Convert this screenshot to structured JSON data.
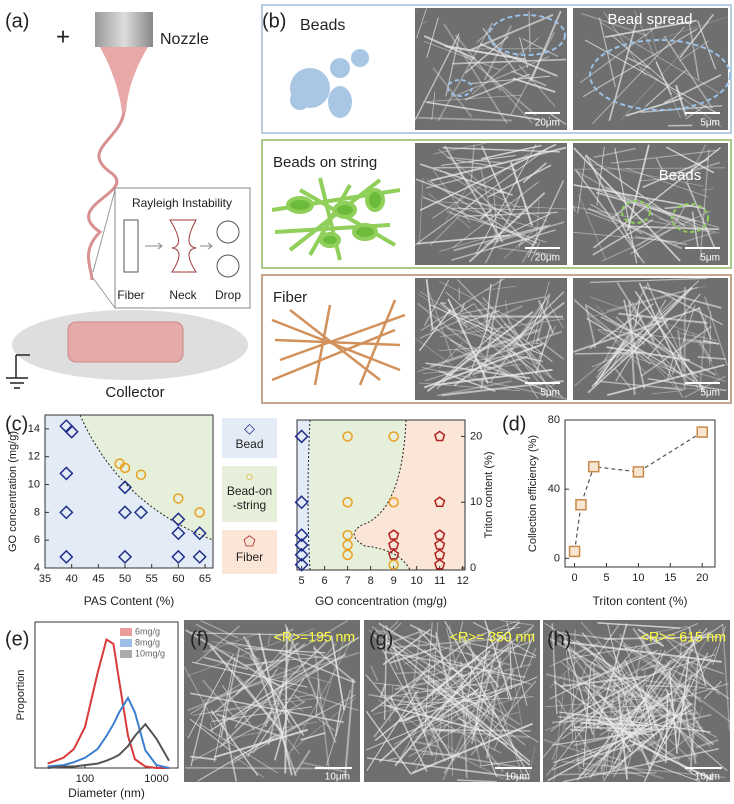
{
  "panel_labels": {
    "a": "(a)",
    "b": "(b)",
    "c": "(c)",
    "d": "(d)",
    "e": "(e)",
    "f": "(f)",
    "g": "(g)",
    "h": "(h)"
  },
  "a": {
    "plus": "+",
    "nozzle": "Nozzle",
    "inset_title": "Rayleigh Instability",
    "stages": [
      "Fiber",
      "Neck",
      "Drop"
    ],
    "collector": "Collector"
  },
  "b": {
    "rows": [
      {
        "label": "Beads",
        "note": "Bead spread",
        "scale_bars": [
          "20μm",
          "5μm"
        ]
      },
      {
        "label": "Beads on string",
        "note": "Beads",
        "scale_bars": [
          "20μm",
          "5μm"
        ]
      },
      {
        "label": "Fiber",
        "scale_bars": [
          "5μm",
          "5μm"
        ]
      }
    ]
  },
  "f_h": [
    {
      "caption": "<R>=195 nm",
      "scale_bar": "10μm"
    },
    {
      "caption": "<R>= 350 nm",
      "scale_bar": "10μm"
    },
    {
      "caption": "<R>= 615 nm",
      "scale_bar": "10μm"
    }
  ],
  "chart_data": [
    {
      "type": "scatter",
      "x_label": "PAS Content (%)",
      "y_label": "GO concentration (mg/g)",
      "xlim": [
        35,
        66.5
      ],
      "xticks": [
        35,
        40,
        45,
        50,
        55,
        60,
        65
      ],
      "ylim": [
        4,
        15
      ],
      "yticks": [
        4,
        6,
        8,
        10,
        12,
        14
      ],
      "series": [
        {
          "color": "#1f2f8a",
          "marker": "diamond",
          "x": [
            39,
            40,
            39,
            39,
            39,
            50,
            50,
            53,
            50,
            60,
            60,
            60,
            64,
            64
          ],
          "values": [
            14.2,
            13.8,
            10.8,
            8,
            4.8,
            9.8,
            8,
            8,
            4.8,
            7.5,
            6.5,
            4.8,
            6.5,
            4.8
          ]
        },
        {
          "color": "#e8a020",
          "marker": "circle",
          "x": [
            49,
            50,
            53,
            60,
            64
          ],
          "values": [
            11.5,
            11.2,
            10.7,
            9,
            8
          ]
        }
      ]
    },
    {
      "type": "scatter",
      "x_label": "GO concentration (mg/g)",
      "y_label": "Triton content (%)",
      "y_side": "right",
      "xlim": [
        4.8,
        12.1
      ],
      "xticks": [
        5,
        6,
        7,
        8,
        9,
        10,
        11,
        12
      ],
      "ylim": [
        -0.3,
        22.5
      ],
      "yticks": [
        0,
        10,
        20
      ],
      "series": [
        {
          "name": "Bead",
          "color": "#1f2f8a",
          "marker": "diamond",
          "x": [
            5,
            5,
            5,
            5,
            5,
            5
          ],
          "values": [
            20,
            10,
            5,
            3.5,
            2,
            0.5
          ]
        },
        {
          "name": "Bead-on\n-string",
          "color": "#e8a020",
          "marker": "circle",
          "x": [
            7,
            7,
            7,
            7,
            7,
            9,
            9,
            9
          ],
          "values": [
            20,
            10,
            5,
            3.5,
            2,
            20,
            10,
            0.5
          ]
        },
        {
          "name": "Fiber",
          "color": "#b02020",
          "marker": "pentagon",
          "x": [
            9,
            9,
            9,
            11,
            11,
            11,
            11,
            11,
            11
          ],
          "values": [
            5,
            3.5,
            2,
            20,
            10,
            5,
            3.5,
            2,
            0.5
          ]
        }
      ]
    },
    {
      "type": "line",
      "x_label": "Triton content (%)",
      "y_label": "Collection efficiency (%)",
      "xlim": [
        -1.5,
        22
      ],
      "xticks": [
        0,
        5,
        10,
        15,
        20
      ],
      "ylim": [
        -5,
        80
      ],
      "yticks": [
        0,
        40,
        80
      ],
      "series": [
        {
          "color": "#c98a4a",
          "marker": "square",
          "line_color": "#555555",
          "line_style": "dashed",
          "x": [
            0,
            1,
            3,
            10,
            20
          ],
          "values": [
            4,
            31,
            53,
            50,
            73
          ]
        }
      ]
    },
    {
      "type": "line",
      "xlog": true,
      "x_label": "Diameter (nm)",
      "y_label": "Proportion",
      "xlim": [
        20,
        2000
      ],
      "xticks": [
        100,
        1000
      ],
      "ylim": [
        0,
        1
      ],
      "series": [
        {
          "name": "6mg/g",
          "color": "#d83a3a",
          "x": [
            30,
            50,
            70,
            100,
            150,
            200,
            250,
            300,
            400,
            500,
            700,
            1000,
            1500
          ],
          "values": [
            0.03,
            0.07,
            0.13,
            0.28,
            0.65,
            0.88,
            0.85,
            0.6,
            0.22,
            0.06,
            0.01,
            0,
            0
          ]
        },
        {
          "name": "8mg/g",
          "color": "#3b7fd0",
          "x": [
            30,
            50,
            70,
            100,
            150,
            200,
            250,
            300,
            400,
            500,
            700,
            1000,
            1500
          ],
          "values": [
            0.01,
            0.02,
            0.04,
            0.07,
            0.13,
            0.22,
            0.3,
            0.38,
            0.48,
            0.38,
            0.12,
            0.02,
            0
          ]
        },
        {
          "name": "10mg/g",
          "color": "#555555",
          "x": [
            30,
            50,
            70,
            100,
            150,
            200,
            250,
            300,
            400,
            500,
            700,
            1000,
            1500
          ],
          "values": [
            0,
            0.01,
            0.01,
            0.02,
            0.03,
            0.05,
            0.07,
            0.09,
            0.15,
            0.22,
            0.3,
            0.2,
            0.05
          ]
        }
      ]
    }
  ]
}
